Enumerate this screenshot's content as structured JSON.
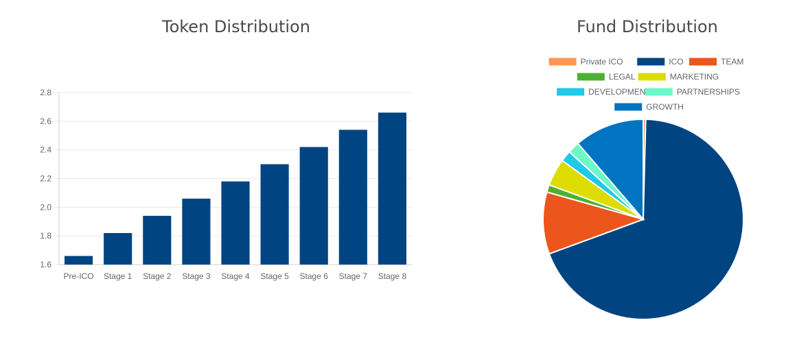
{
  "colors": {
    "bar": "#004481",
    "grid": "#e8e8e8",
    "axis": "#d0d0d0",
    "tick_text": "#666666",
    "title_text": "#4a4a4a"
  },
  "chart_data": [
    {
      "type": "bar",
      "title": "Token Distribution",
      "categories": [
        "Pre-ICO",
        "Stage 1",
        "Stage 2",
        "Stage 3",
        "Stage 4",
        "Stage 5",
        "Stage 6",
        "Stage 7",
        "Stage 8"
      ],
      "values": [
        1.66,
        1.82,
        1.94,
        2.06,
        2.18,
        2.3,
        2.42,
        2.54,
        2.66
      ],
      "ylim": [
        1.6,
        2.8
      ],
      "yticks": [
        "1.6",
        "1.8",
        "2.0",
        "2.2",
        "2.4",
        "2.6",
        "2.8"
      ],
      "xlabel": "",
      "ylabel": "",
      "grid": true
    },
    {
      "type": "pie",
      "title": "Fund Distribution",
      "legend_position": "top",
      "labels": [
        "Private ICO",
        "ICO",
        "TEAM",
        "LEGAL",
        "MARKETING",
        "DEVELOPMENT",
        "PARTNERSHIPS",
        "GROWTH"
      ],
      "values": [
        0.4,
        69.0,
        10.0,
        1.2,
        4.4,
        1.8,
        1.9,
        11.3
      ],
      "colors": [
        "#ff9656",
        "#004481",
        "#ec551b",
        "#4eb032",
        "#dcdc00",
        "#20c9e6",
        "#6cf8c8",
        "#0074c0"
      ]
    }
  ]
}
